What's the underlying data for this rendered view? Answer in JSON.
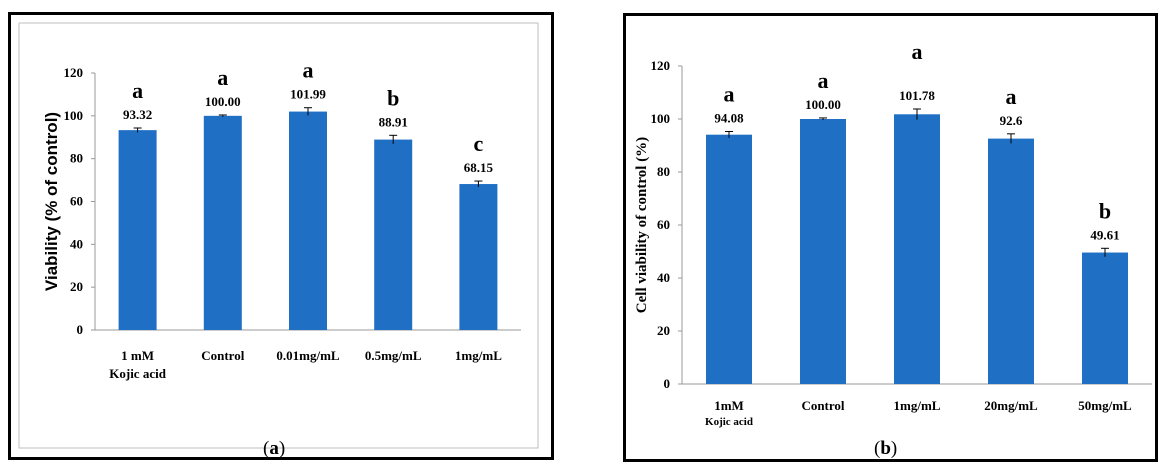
{
  "colors": {
    "bar": "#1f6fc5",
    "axis": "#999999",
    "frame": "#000000",
    "text": "#000000"
  },
  "captions": {
    "a": {
      "open": "(",
      "letter": "a",
      "close": ")"
    },
    "b": {
      "open": "(",
      "letter": "b",
      "close": ")"
    }
  },
  "chart_data": [
    {
      "type": "bar",
      "title": "",
      "xlabel": "",
      "ylabel": "Viability (% of control)",
      "ylim": [
        0,
        120
      ],
      "yticks": [
        "0",
        "20",
        "40",
        "60",
        "80",
        "100",
        "120"
      ],
      "categories": [
        [
          "1 mM",
          "Kojic acid"
        ],
        [
          "Control"
        ],
        [
          "0.01mg/mL"
        ],
        [
          "0.5mg/mL"
        ],
        [
          "1mg/mL"
        ]
      ],
      "values": [
        93.32,
        100.0,
        101.99,
        88.91,
        68.15
      ],
      "value_labels": [
        "93.32",
        "100.00",
        "101.99",
        "88.91",
        "68.15"
      ],
      "error": [
        1.0,
        0.4,
        1.8,
        2.0,
        1.4
      ],
      "letters": [
        "a",
        "a",
        "a",
        "b",
        "c"
      ],
      "grid": false,
      "legend": "none"
    },
    {
      "type": "bar",
      "title": "",
      "xlabel": "",
      "ylabel": "Cell viability of control (%)",
      "ylim": [
        0,
        120
      ],
      "yticks": [
        "0",
        "20",
        "40",
        "60",
        "80",
        "100",
        "120"
      ],
      "categories": [
        [
          "1mM",
          "Kojic acid"
        ],
        [
          "Control"
        ],
        [
          "1mg/mL"
        ],
        [
          "20mg/mL"
        ],
        [
          "50mg/mL"
        ]
      ],
      "values": [
        94.08,
        100.0,
        101.78,
        92.6,
        49.61
      ],
      "value_labels": [
        "94.08",
        "100.00",
        "101.78",
        "92.6",
        "49.61"
      ],
      "error": [
        1.2,
        0.4,
        2.0,
        1.8,
        1.6
      ],
      "letters": [
        "a",
        "a",
        "a",
        "a",
        "b"
      ],
      "grid": false,
      "legend": "none"
    }
  ]
}
